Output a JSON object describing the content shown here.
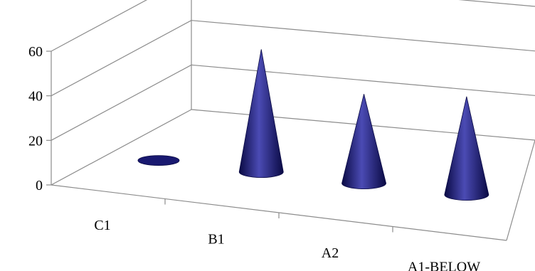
{
  "chart_data": {
    "type": "bar",
    "bar_shape": "cone",
    "projection": "3d",
    "categories": [
      "C1",
      "B1",
      "A2",
      "A1-BELOW"
    ],
    "values": [
      0,
      55,
      40,
      44
    ],
    "ylim": [
      0,
      60
    ],
    "yticks": [
      "0",
      "20",
      "40",
      "60"
    ],
    "grid": true,
    "legend": "none",
    "colors": {
      "series": "#191970",
      "series_dark": "#0a0a44",
      "series_light": "#4b4bb4",
      "gridline": "#8c8c8c",
      "background": "#ffffff"
    }
  }
}
